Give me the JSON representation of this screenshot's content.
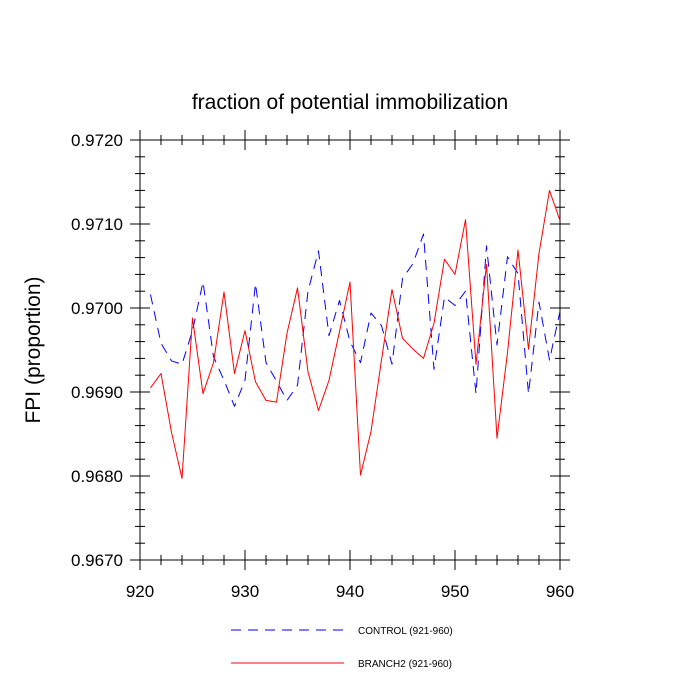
{
  "chart_data": {
    "type": "line",
    "title": "fraction of potential immobilization",
    "xlabel": "",
    "ylabel": "FPI  (proportion)",
    "xlim": [
      920,
      960
    ],
    "ylim": [
      0.967,
      0.972
    ],
    "x_ticks": [
      920,
      930,
      940,
      950,
      960
    ],
    "x_tick_labels": [
      "920",
      "930",
      "940",
      "950",
      "960"
    ],
    "y_ticks": [
      0.967,
      0.968,
      0.969,
      0.97,
      0.971,
      0.972
    ],
    "y_tick_labels": [
      "0.9670",
      "0.9680",
      "0.9690",
      "0.9700",
      "0.9710",
      "0.9720"
    ],
    "x": [
      921,
      922,
      923,
      924,
      925,
      926,
      927,
      928,
      929,
      930,
      931,
      932,
      933,
      934,
      935,
      936,
      937,
      938,
      939,
      940,
      941,
      942,
      943,
      944,
      945,
      946,
      947,
      948,
      949,
      950,
      951,
      952,
      953,
      954,
      955,
      956,
      957,
      958,
      959,
      960
    ],
    "series": [
      {
        "name": "CONTROL (921-960)",
        "color": "#0000ff",
        "style": "dashed",
        "values": [
          0.97016,
          0.96958,
          0.96937,
          0.96933,
          0.96973,
          0.97031,
          0.96942,
          0.96914,
          0.96883,
          0.96914,
          0.97029,
          0.96935,
          0.96913,
          0.9689,
          0.96908,
          0.9702,
          0.97068,
          0.96967,
          0.97009,
          0.9696,
          0.96935,
          0.96994,
          0.96979,
          0.96933,
          0.97035,
          0.97053,
          0.97088,
          0.96927,
          0.97013,
          0.97003,
          0.9702,
          0.96898,
          0.97074,
          0.96956,
          0.97061,
          0.97041,
          0.96898,
          0.97007,
          0.96938,
          0.96996
        ]
      },
      {
        "name": "BRANCH2 (921-960)",
        "color": "#ff0000",
        "style": "solid",
        "values": [
          0.96905,
          0.96922,
          0.96852,
          0.96797,
          0.96988,
          0.96898,
          0.96935,
          0.97019,
          0.96922,
          0.96973,
          0.96912,
          0.9689,
          0.96888,
          0.9697,
          0.97024,
          0.96924,
          0.96878,
          0.96914,
          0.96972,
          0.97031,
          0.96801,
          0.96853,
          0.96938,
          0.97022,
          0.96964,
          0.96951,
          0.9694,
          0.96982,
          0.97058,
          0.9704,
          0.97105,
          0.96933,
          0.97052,
          0.96845,
          0.96947,
          0.97069,
          0.96951,
          0.97065,
          0.9714,
          0.97104
        ]
      }
    ],
    "legend": [
      "CONTROL (921-960)",
      "BRANCH2 (921-960)"
    ],
    "legend_position": "bottom",
    "grid": false
  }
}
